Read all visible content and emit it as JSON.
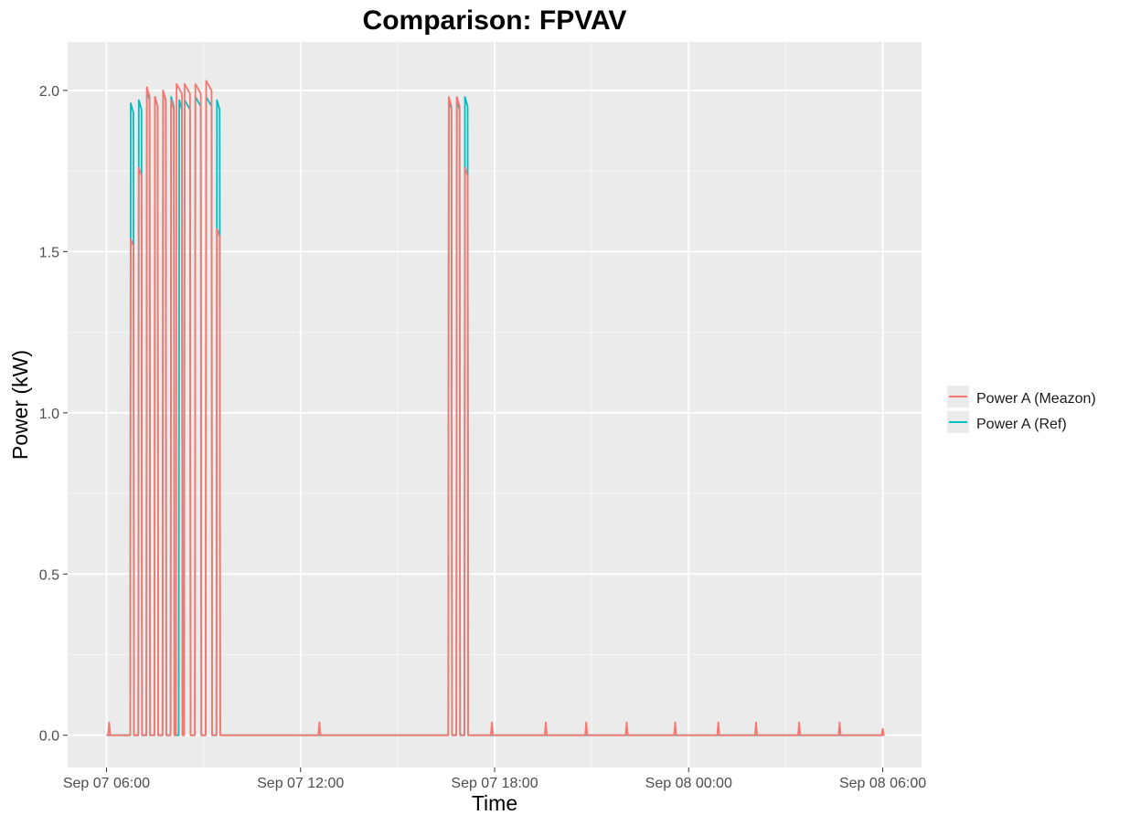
{
  "chart_data": {
    "type": "line",
    "title": "Comparison: FPVAV",
    "xlabel": "Time",
    "ylabel": "Power (kW)",
    "x_ticks": [
      "Sep 07 06:00",
      "Sep 07 12:00",
      "Sep 07 18:00",
      "Sep 08 00:00",
      "Sep 08 06:00"
    ],
    "y_ticks": [
      "0.0",
      "0.5",
      "1.0",
      "1.5",
      "2.0"
    ],
    "xlim": [
      "Sep 07 04:48",
      "Sep 08 07:12"
    ],
    "ylim": [
      -0.1,
      2.15
    ],
    "grid": true,
    "legend_position": "right",
    "panel_background": "#ebebeb",
    "series": [
      {
        "name": "Power A (Ref)",
        "color": "#00bfc4",
        "pulses": [
          {
            "on": "Sep 07 06:45",
            "off": "Sep 07 06:50",
            "peak": 1.96
          },
          {
            "on": "Sep 07 07:00",
            "off": "Sep 07 07:05",
            "peak": 1.97
          },
          {
            "on": "Sep 07 07:15",
            "off": "Sep 07 07:20",
            "peak": 2.0
          },
          {
            "on": "Sep 07 07:30",
            "off": "Sep 07 07:35",
            "peak": 1.98
          },
          {
            "on": "Sep 07 07:45",
            "off": "Sep 07 07:50",
            "peak": 2.0
          },
          {
            "on": "Sep 07 08:00",
            "off": "Sep 07 08:05",
            "peak": 1.98
          },
          {
            "on": "Sep 07 08:15",
            "off": "Sep 07 08:20",
            "peak": 1.97
          },
          {
            "on": "Sep 07 08:25",
            "off": "Sep 07 08:35",
            "peak": 1.97
          },
          {
            "on": "Sep 07 08:45",
            "off": "Sep 07 08:55",
            "peak": 1.98
          },
          {
            "on": "Sep 07 09:05",
            "off": "Sep 07 09:15",
            "peak": 1.98
          },
          {
            "on": "Sep 07 09:25",
            "off": "Sep 07 09:30",
            "peak": 1.97
          },
          {
            "on": "Sep 07 16:35",
            "off": "Sep 07 16:40",
            "peak": 1.97
          },
          {
            "on": "Sep 07 16:50",
            "off": "Sep 07 16:55",
            "peak": 1.97
          },
          {
            "on": "Sep 07 17:05",
            "off": "Sep 07 17:10",
            "peak": 1.98
          }
        ],
        "spikes": []
      },
      {
        "name": "Power A (Meazon)",
        "color": "#f8766d",
        "pulses": [
          {
            "on": "Sep 07 06:45",
            "off": "Sep 07 06:50",
            "peak": 1.54
          },
          {
            "on": "Sep 07 07:00",
            "off": "Sep 07 07:05",
            "peak": 1.76
          },
          {
            "on": "Sep 07 07:15",
            "off": "Sep 07 07:20",
            "peak": 2.01
          },
          {
            "on": "Sep 07 07:30",
            "off": "Sep 07 07:35",
            "peak": 1.98
          },
          {
            "on": "Sep 07 07:45",
            "off": "Sep 07 07:50",
            "peak": 2.0
          },
          {
            "on": "Sep 07 08:00",
            "off": "Sep 07 08:05",
            "peak": 1.97
          },
          {
            "on": "Sep 07 08:10",
            "off": "Sep 07 08:20",
            "peak": 2.02
          },
          {
            "on": "Sep 07 08:25",
            "off": "Sep 07 08:35",
            "peak": 2.02
          },
          {
            "on": "Sep 07 08:45",
            "off": "Sep 07 08:55",
            "peak": 2.02
          },
          {
            "on": "Sep 07 09:05",
            "off": "Sep 07 09:15",
            "peak": 2.03
          },
          {
            "on": "Sep 07 09:25",
            "off": "Sep 07 09:30",
            "peak": 1.57
          },
          {
            "on": "Sep 07 16:35",
            "off": "Sep 07 16:40",
            "peak": 1.98
          },
          {
            "on": "Sep 07 16:50",
            "off": "Sep 07 16:55",
            "peak": 1.98
          },
          {
            "on": "Sep 07 17:05",
            "off": "Sep 07 17:10",
            "peak": 1.76
          }
        ],
        "spikes": [
          {
            "x": "Sep 07 06:05",
            "y": 0.04
          },
          {
            "x": "Sep 07 12:35",
            "y": 0.04
          },
          {
            "x": "Sep 07 17:55",
            "y": 0.04
          },
          {
            "x": "Sep 07 19:35",
            "y": 0.04
          },
          {
            "x": "Sep 07 20:50",
            "y": 0.04
          },
          {
            "x": "Sep 07 22:05",
            "y": 0.04
          },
          {
            "x": "Sep 07 23:35",
            "y": 0.04
          },
          {
            "x": "Sep 08 00:55",
            "y": 0.04
          },
          {
            "x": "Sep 08 02:05",
            "y": 0.04
          },
          {
            "x": "Sep 08 03:25",
            "y": 0.04
          },
          {
            "x": "Sep 08 04:40",
            "y": 0.04
          },
          {
            "x": "Sep 08 06:00",
            "y": 0.02
          }
        ]
      }
    ]
  }
}
